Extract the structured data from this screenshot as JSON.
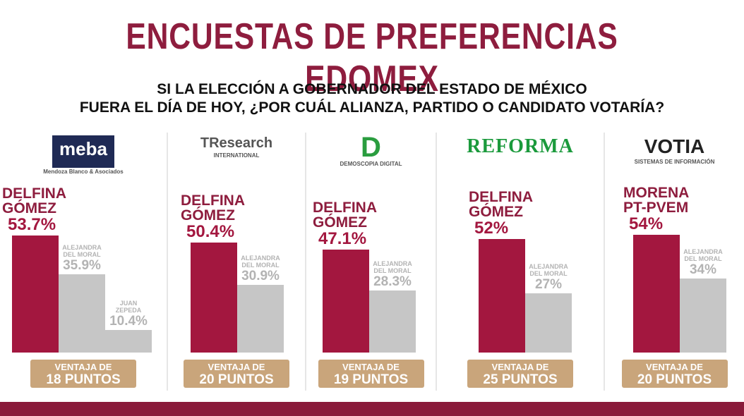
{
  "title": "ENCUESTAS DE PREFERENCIAS EDOMEX",
  "subtitle": [
    "SI LA ELECCIÓN A GOBERNADOR DEL ESTADO DE MÉXICO",
    "FUERA EL DÍA DE HOY, ¿POR CUÁL ALIANZA, PARTIDO O CANDIDATO VOTARÍA?"
  ],
  "chart_data": [
    {
      "type": "bar",
      "logo": "meba",
      "logo_sub": "Mendoza Blanco & Asociados",
      "categories": [
        "DELFINA GÓMEZ",
        "ALEJANDRA DEL MORAL",
        "JUAN ZEPEDA"
      ],
      "values": [
        53.7,
        35.9,
        10.4
      ],
      "value_labels": [
        "53.7%",
        "35.9%",
        "10.4%"
      ],
      "colors": [
        "#a3173f",
        "#c6c6c6",
        "#c6c6c6"
      ],
      "advantage": [
        "VENTAJA DE",
        "18 PUNTOS"
      ]
    },
    {
      "type": "bar",
      "logo": "TResearch",
      "logo_sub": "INTERNATIONAL",
      "categories": [
        "DELFINA GÓMEZ",
        "ALEJANDRA DEL MORAL"
      ],
      "values": [
        50.4,
        30.9
      ],
      "value_labels": [
        "50.4%",
        "30.9%"
      ],
      "colors": [
        "#a3173f",
        "#c6c6c6"
      ],
      "advantage": [
        "VENTAJA DE",
        "20 PUNTOS"
      ]
    },
    {
      "type": "bar",
      "logo": "D",
      "logo_sub": "DEMOSCOPIA DIGITAL",
      "categories": [
        "DELFINA GÓMEZ",
        "ALEJANDRA DEL MORAL"
      ],
      "values": [
        47.1,
        28.3
      ],
      "value_labels": [
        "47.1%",
        "28.3%"
      ],
      "colors": [
        "#a3173f",
        "#c6c6c6"
      ],
      "advantage": [
        "VENTAJA DE",
        "19 PUNTOS"
      ]
    },
    {
      "type": "bar",
      "logo": "REFORMA",
      "categories": [
        "DELFINA GÓMEZ",
        "ALEJANDRA DEL MORAL"
      ],
      "values": [
        52,
        27
      ],
      "value_labels": [
        "52%",
        "27%"
      ],
      "colors": [
        "#a3173f",
        "#c6c6c6"
      ],
      "advantage": [
        "VENTAJA DE",
        "25 PUNTOS"
      ]
    },
    {
      "type": "bar",
      "logo": "VOTIA",
      "logo_sub": "SISTEMAS DE INFORMACIÓN",
      "categories": [
        "MORENA PT-PVEM",
        "ALEJANDRA DEL MORAL"
      ],
      "values": [
        54,
        34
      ],
      "value_labels": [
        "54%",
        "34%"
      ],
      "colors": [
        "#a3173f",
        "#c6c6c6"
      ],
      "advantage": [
        "VENTAJA DE",
        "20 PUNTOS"
      ]
    }
  ]
}
